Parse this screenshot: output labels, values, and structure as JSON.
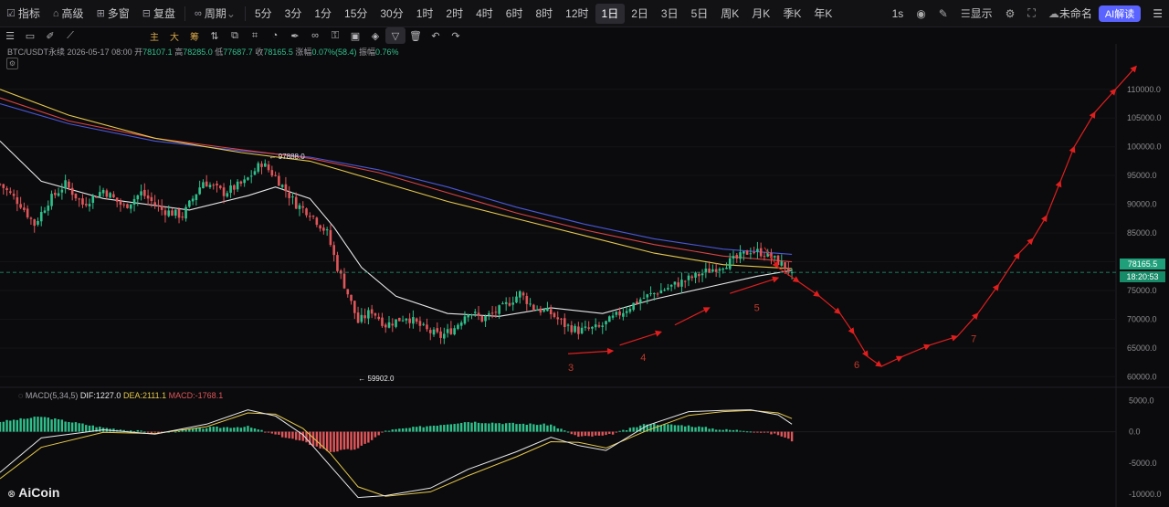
{
  "topbar": {
    "items": [
      "指标",
      "高级",
      "多窗",
      "复盘",
      "周期",
      "5分",
      "3分",
      "1分",
      "15分",
      "30分",
      "1时",
      "2时",
      "4时",
      "6时",
      "8时",
      "12时",
      "1日",
      "2日",
      "3日",
      "5日",
      "周K",
      "月K",
      "季K",
      "年K"
    ],
    "icons": [
      "indicator-icon",
      "advanced-icon",
      "multiwindow-icon",
      "replay-icon",
      "link-icon"
    ],
    "active": "1日",
    "right": {
      "interval": "1s",
      "display": "显示",
      "layout_name": "未命名",
      "ai": "AI解读"
    }
  },
  "toolbar2": {
    "zh_items": [
      "主",
      "大",
      "筹"
    ]
  },
  "ohlc": {
    "symbol": "BTC/USDT永续",
    "date": "2026-05-17 08:00",
    "open_label": "开",
    "open": "78107.1",
    "high_label": "高",
    "high": "78285.0",
    "low_label": "低",
    "low": "77687.7",
    "close_label": "收",
    "close": "78165.5",
    "change_label": "涨幅",
    "change": "0.07%(58.4)",
    "amp_label": "振幅",
    "amp": "0.76%"
  },
  "macd_legend": {
    "title": "MACD(5,34,5)",
    "dif": "DIF:1227.0",
    "dea": "DEA:2111.1",
    "macd": "MACD:-1768.1"
  },
  "logo": "AiCoin",
  "colors": {
    "up": "#2fc08c",
    "down": "#e0565a",
    "ma_white": "#e8e8ea",
    "ma_yellow": "#e6c84b",
    "ma_red": "#d94343",
    "ma_blue": "#4a57d8",
    "projection": "#e01e1e",
    "last_price_bg": "#1fa07a"
  },
  "chart_data": [
    {
      "type": "candlestick",
      "title": "",
      "price_axis": {
        "ticks": [
          60000,
          65000,
          70000,
          75000,
          80000,
          85000,
          90000,
          95000,
          100000,
          105000,
          110000
        ],
        "tick_labels": [
          "60000.0",
          "65000.0",
          "70000.0",
          "75000.0",
          "80000.0",
          "85000.0",
          "90000.0",
          "95000.0",
          "100000.0",
          "105000.0",
          "110000.0"
        ],
        "range": [
          58000,
          116000
        ]
      },
      "last_price": "78165.5",
      "countdown": "18:20:53",
      "annotations": {
        "high_label": "97888.0",
        "low_label": "59902.0"
      },
      "candle_anchors": [
        [
          0,
          93500
        ],
        [
          6,
          90000
        ],
        [
          10,
          86500
        ],
        [
          14,
          90500
        ],
        [
          19,
          93500
        ],
        [
          24,
          90000
        ],
        [
          30,
          92500
        ],
        [
          36,
          89500
        ],
        [
          41,
          92000
        ],
        [
          47,
          89000
        ],
        [
          53,
          88000
        ],
        [
          59,
          94000
        ],
        [
          65,
          92000
        ],
        [
          71,
          93800
        ],
        [
          76,
          97200
        ],
        [
          80,
          94800
        ],
        [
          86,
          90000
        ],
        [
          90,
          88500
        ],
        [
          95,
          85000
        ],
        [
          98,
          79000
        ],
        [
          101,
          74500
        ],
        [
          104,
          69500
        ],
        [
          108,
          71500
        ],
        [
          112,
          69000
        ],
        [
          118,
          70500
        ],
        [
          124,
          68000
        ],
        [
          128,
          67000
        ],
        [
          132,
          68500
        ],
        [
          136,
          71500
        ],
        [
          140,
          70000
        ],
        [
          146,
          72000
        ],
        [
          151,
          74500
        ],
        [
          155,
          72000
        ],
        [
          160,
          71000
        ],
        [
          164,
          69000
        ],
        [
          168,
          68000
        ],
        [
          174,
          68500
        ],
        [
          180,
          71000
        ],
        [
          186,
          73500
        ],
        [
          192,
          75000
        ],
        [
          198,
          76500
        ],
        [
          204,
          78000
        ],
        [
          210,
          79500
        ],
        [
          214,
          80500
        ],
        [
          218,
          82000
        ],
        [
          222,
          81500
        ],
        [
          226,
          80000
        ],
        [
          230,
          78200
        ]
      ],
      "ma_white": [
        [
          0,
          101000
        ],
        [
          12,
          94000
        ],
        [
          30,
          91000
        ],
        [
          55,
          89000
        ],
        [
          72,
          91500
        ],
        [
          80,
          93000
        ],
        [
          90,
          91000
        ],
        [
          97,
          86000
        ],
        [
          105,
          79000
        ],
        [
          115,
          74000
        ],
        [
          130,
          71000
        ],
        [
          145,
          70500
        ],
        [
          160,
          72000
        ],
        [
          175,
          71000
        ],
        [
          190,
          73500
        ],
        [
          205,
          75500
        ],
        [
          220,
          77500
        ],
        [
          230,
          78500
        ]
      ],
      "ma_yellow": [
        [
          0,
          110000
        ],
        [
          20,
          105500
        ],
        [
          45,
          101500
        ],
        [
          70,
          99000
        ],
        [
          90,
          97500
        ],
        [
          110,
          94000
        ],
        [
          130,
          90500
        ],
        [
          150,
          87500
        ],
        [
          170,
          84500
        ],
        [
          190,
          81500
        ],
        [
          210,
          79500
        ],
        [
          230,
          78800
        ]
      ],
      "ma_red": [
        [
          0,
          108500
        ],
        [
          20,
          104500
        ],
        [
          45,
          101500
        ],
        [
          70,
          99500
        ],
        [
          90,
          98000
        ],
        [
          110,
          95500
        ],
        [
          130,
          92000
        ],
        [
          150,
          88500
        ],
        [
          170,
          85500
        ],
        [
          190,
          83000
        ],
        [
          210,
          81000
        ],
        [
          230,
          80000
        ]
      ],
      "ma_blue": [
        [
          0,
          107500
        ],
        [
          20,
          104000
        ],
        [
          45,
          101000
        ],
        [
          70,
          99300
        ],
        [
          90,
          98200
        ],
        [
          110,
          96000
        ],
        [
          130,
          93000
        ],
        [
          150,
          89500
        ],
        [
          170,
          86500
        ],
        [
          190,
          84000
        ],
        [
          210,
          82200
        ],
        [
          230,
          81300
        ]
      ],
      "projection_line": [
        [
          222,
          82500
        ],
        [
          226,
          79000
        ],
        [
          232,
          76500
        ],
        [
          238,
          74000
        ],
        [
          244,
          71000
        ],
        [
          248,
          67500
        ],
        [
          252,
          63500
        ],
        [
          256,
          61800
        ],
        [
          262,
          63500
        ],
        [
          270,
          65500
        ],
        [
          278,
          67000
        ],
        [
          284,
          71000
        ],
        [
          290,
          76000
        ],
        [
          296,
          81500
        ],
        [
          300,
          84000
        ],
        [
          304,
          88000
        ],
        [
          308,
          94000
        ],
        [
          312,
          100000
        ],
        [
          318,
          106000
        ],
        [
          324,
          110000
        ],
        [
          330,
          114000
        ]
      ],
      "support_arrows": [
        [
          [
            165,
            64000
          ],
          [
            178,
            64500
          ]
        ],
        [
          [
            180,
            65500
          ],
          [
            192,
            67800
          ]
        ],
        [
          [
            196,
            69000
          ],
          [
            206,
            72000
          ]
        ],
        [
          [
            212,
            74500
          ],
          [
            226,
            77200
          ]
        ]
      ],
      "wave_labels": [
        {
          "text": "3",
          "x": 165,
          "y": 61000
        },
        {
          "text": "4",
          "x": 186,
          "y": 62800
        },
        {
          "text": "5",
          "x": 219,
          "y": 71400
        },
        {
          "text": "6",
          "x": 248,
          "y": 61500
        },
        {
          "text": "7",
          "x": 282,
          "y": 66000
        }
      ]
    },
    {
      "type": "macd",
      "axis": {
        "ticks": [
          5000,
          0,
          -5000,
          -10000
        ],
        "tick_labels": [
          "5000.0",
          "0.0",
          "-5000.0",
          "-10000.0"
        ],
        "range": [
          -11000,
          6500
        ]
      },
      "dif": [
        [
          0,
          -6500
        ],
        [
          12,
          -1000
        ],
        [
          30,
          300
        ],
        [
          45,
          -400
        ],
        [
          60,
          1200
        ],
        [
          72,
          3500
        ],
        [
          80,
          2500
        ],
        [
          88,
          -500
        ],
        [
          96,
          -5500
        ],
        [
          104,
          -10500
        ],
        [
          112,
          -10200
        ],
        [
          125,
          -9000
        ],
        [
          136,
          -6000
        ],
        [
          150,
          -3200
        ],
        [
          160,
          -900
        ],
        [
          168,
          -2200
        ],
        [
          176,
          -3000
        ],
        [
          188,
          1000
        ],
        [
          200,
          3200
        ],
        [
          210,
          3400
        ],
        [
          218,
          3500
        ],
        [
          226,
          2700
        ],
        [
          230,
          1200
        ]
      ],
      "dea": [
        [
          0,
          -7500
        ],
        [
          12,
          -2500
        ],
        [
          30,
          -100
        ],
        [
          45,
          -300
        ],
        [
          60,
          800
        ],
        [
          72,
          3000
        ],
        [
          80,
          2800
        ],
        [
          88,
          500
        ],
        [
          96,
          -3500
        ],
        [
          104,
          -8800
        ],
        [
          112,
          -10300
        ],
        [
          125,
          -9600
        ],
        [
          136,
          -7000
        ],
        [
          150,
          -4000
        ],
        [
          160,
          -1600
        ],
        [
          168,
          -1700
        ],
        [
          176,
          -2600
        ],
        [
          188,
          200
        ],
        [
          200,
          2600
        ],
        [
          210,
          3200
        ],
        [
          218,
          3400
        ],
        [
          226,
          3000
        ],
        [
          230,
          2100
        ]
      ]
    }
  ]
}
